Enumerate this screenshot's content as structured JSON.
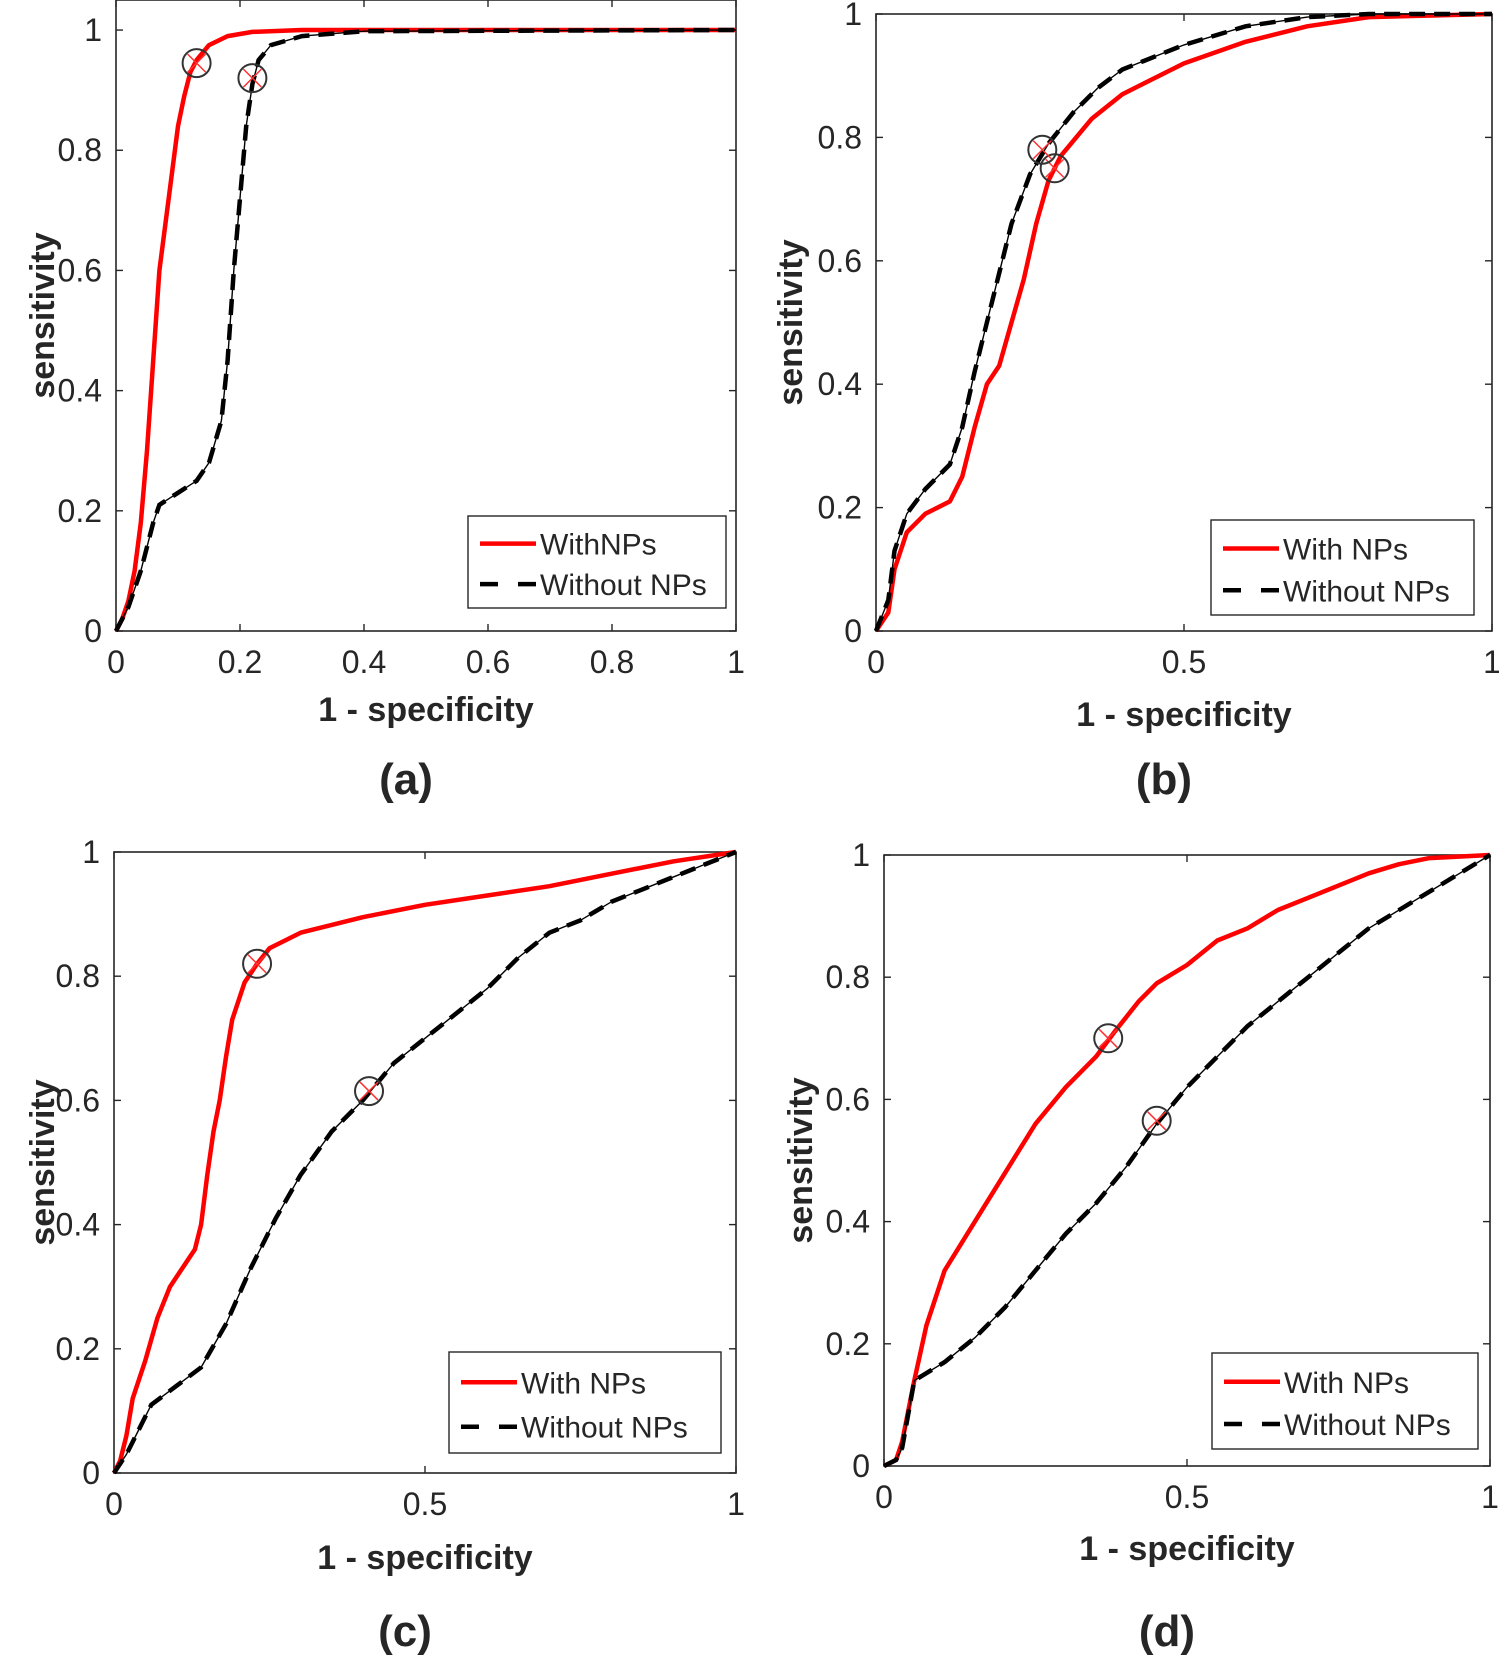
{
  "chart_data": [
    {
      "panel": "a",
      "type": "line",
      "caption": "(a)",
      "xlabel": "1 - specificity",
      "ylabel": "sensitivity",
      "xlim": [
        0,
        1
      ],
      "ylim": [
        0,
        1.05
      ],
      "xticks": [
        "0",
        "0.2",
        "0.4",
        "0.6",
        "0.8",
        "1"
      ],
      "yticks": [
        "0",
        "0.2",
        "0.4",
        "0.6",
        "0.8",
        "1"
      ],
      "legend": {
        "position": "bottom-right",
        "entries": [
          "WithNPs",
          "Without NPs"
        ]
      },
      "series": [
        {
          "name": "WithNPs",
          "color": "#ff0000",
          "dash": "solid",
          "points": [
            [
              0,
              0
            ],
            [
              0.01,
              0.02
            ],
            [
              0.02,
              0.05
            ],
            [
              0.03,
              0.1
            ],
            [
              0.04,
              0.18
            ],
            [
              0.05,
              0.3
            ],
            [
              0.06,
              0.45
            ],
            [
              0.07,
              0.6
            ],
            [
              0.08,
              0.68
            ],
            [
              0.09,
              0.76
            ],
            [
              0.1,
              0.84
            ],
            [
              0.11,
              0.89
            ],
            [
              0.12,
              0.93
            ],
            [
              0.13,
              0.95
            ],
            [
              0.15,
              0.975
            ],
            [
              0.18,
              0.99
            ],
            [
              0.22,
              0.997
            ],
            [
              0.3,
              1
            ],
            [
              1,
              1
            ]
          ],
          "operating_point": [
            0.13,
            0.945
          ]
        },
        {
          "name": "Without NPs",
          "color": "#000000",
          "dash": "dashed",
          "points": [
            [
              0,
              0
            ],
            [
              0.02,
              0.04
            ],
            [
              0.04,
              0.1
            ],
            [
              0.05,
              0.14
            ],
            [
              0.06,
              0.18
            ],
            [
              0.07,
              0.21
            ],
            [
              0.1,
              0.23
            ],
            [
              0.13,
              0.25
            ],
            [
              0.15,
              0.28
            ],
            [
              0.17,
              0.35
            ],
            [
              0.18,
              0.45
            ],
            [
              0.19,
              0.6
            ],
            [
              0.2,
              0.72
            ],
            [
              0.21,
              0.84
            ],
            [
              0.22,
              0.91
            ],
            [
              0.23,
              0.95
            ],
            [
              0.25,
              0.975
            ],
            [
              0.3,
              0.99
            ],
            [
              0.4,
              0.998
            ],
            [
              1,
              1
            ]
          ],
          "operating_point": [
            0.22,
            0.92
          ]
        }
      ]
    },
    {
      "panel": "b",
      "type": "line",
      "caption": "(b)",
      "xlabel": "1 - specificity",
      "ylabel": "sensitivity",
      "xlim": [
        0,
        1
      ],
      "ylim": [
        0,
        1
      ],
      "xticks": [
        "0",
        "0.5",
        "1"
      ],
      "yticks": [
        "0",
        "0.2",
        "0.4",
        "0.6",
        "0.8",
        "1"
      ],
      "legend": {
        "position": "bottom-right",
        "entries": [
          "With NPs",
          "Without NPs"
        ]
      },
      "series": [
        {
          "name": "With NPs",
          "color": "#ff0000",
          "dash": "solid",
          "points": [
            [
              0,
              0
            ],
            [
              0.02,
              0.03
            ],
            [
              0.03,
              0.1
            ],
            [
              0.05,
              0.16
            ],
            [
              0.08,
              0.19
            ],
            [
              0.12,
              0.21
            ],
            [
              0.14,
              0.25
            ],
            [
              0.16,
              0.33
            ],
            [
              0.18,
              0.4
            ],
            [
              0.2,
              0.43
            ],
            [
              0.22,
              0.5
            ],
            [
              0.24,
              0.57
            ],
            [
              0.26,
              0.66
            ],
            [
              0.28,
              0.73
            ],
            [
              0.3,
              0.77
            ],
            [
              0.35,
              0.83
            ],
            [
              0.4,
              0.87
            ],
            [
              0.5,
              0.92
            ],
            [
              0.6,
              0.955
            ],
            [
              0.7,
              0.98
            ],
            [
              0.8,
              0.995
            ],
            [
              1,
              1
            ]
          ],
          "operating_point": [
            0.29,
            0.75
          ]
        },
        {
          "name": "Without NPs",
          "color": "#000000",
          "dash": "dashed",
          "points": [
            [
              0,
              0
            ],
            [
              0.02,
              0.05
            ],
            [
              0.03,
              0.13
            ],
            [
              0.05,
              0.19
            ],
            [
              0.08,
              0.23
            ],
            [
              0.12,
              0.27
            ],
            [
              0.14,
              0.33
            ],
            [
              0.16,
              0.42
            ],
            [
              0.18,
              0.5
            ],
            [
              0.2,
              0.58
            ],
            [
              0.22,
              0.66
            ],
            [
              0.25,
              0.74
            ],
            [
              0.28,
              0.79
            ],
            [
              0.32,
              0.84
            ],
            [
              0.36,
              0.88
            ],
            [
              0.4,
              0.91
            ],
            [
              0.5,
              0.95
            ],
            [
              0.6,
              0.98
            ],
            [
              0.7,
              0.995
            ],
            [
              0.8,
              1
            ],
            [
              1,
              1
            ]
          ],
          "operating_point": [
            0.27,
            0.78
          ]
        }
      ]
    },
    {
      "panel": "c",
      "type": "line",
      "caption": "(c)",
      "xlabel": "1 - specificity",
      "ylabel": "sensitivity",
      "xlim": [
        0,
        1
      ],
      "ylim": [
        0,
        1
      ],
      "xticks": [
        "0",
        "0.5",
        "1"
      ],
      "yticks": [
        "0",
        "0.2",
        "0.4",
        "0.6",
        "0.8",
        "1"
      ],
      "legend": {
        "position": "bottom-right",
        "entries": [
          "With NPs",
          "Without NPs"
        ]
      },
      "series": [
        {
          "name": "With NPs",
          "color": "#ff0000",
          "dash": "solid",
          "points": [
            [
              0,
              0
            ],
            [
              0.01,
              0.02
            ],
            [
              0.02,
              0.06
            ],
            [
              0.03,
              0.12
            ],
            [
              0.05,
              0.18
            ],
            [
              0.07,
              0.25
            ],
            [
              0.09,
              0.3
            ],
            [
              0.11,
              0.33
            ],
            [
              0.13,
              0.36
            ],
            [
              0.14,
              0.4
            ],
            [
              0.15,
              0.48
            ],
            [
              0.16,
              0.55
            ],
            [
              0.17,
              0.6
            ],
            [
              0.18,
              0.67
            ],
            [
              0.19,
              0.73
            ],
            [
              0.21,
              0.79
            ],
            [
              0.23,
              0.82
            ],
            [
              0.25,
              0.845
            ],
            [
              0.3,
              0.87
            ],
            [
              0.4,
              0.895
            ],
            [
              0.5,
              0.915
            ],
            [
              0.6,
              0.93
            ],
            [
              0.7,
              0.945
            ],
            [
              0.8,
              0.965
            ],
            [
              0.9,
              0.985
            ],
            [
              1,
              1
            ]
          ],
          "operating_point": [
            0.23,
            0.82
          ]
        },
        {
          "name": "Without NPs",
          "color": "#000000",
          "dash": "dashed",
          "points": [
            [
              0,
              0
            ],
            [
              0.02,
              0.03
            ],
            [
              0.04,
              0.07
            ],
            [
              0.06,
              0.11
            ],
            [
              0.1,
              0.14
            ],
            [
              0.14,
              0.17
            ],
            [
              0.18,
              0.24
            ],
            [
              0.22,
              0.33
            ],
            [
              0.26,
              0.41
            ],
            [
              0.3,
              0.48
            ],
            [
              0.35,
              0.55
            ],
            [
              0.4,
              0.6
            ],
            [
              0.45,
              0.66
            ],
            [
              0.5,
              0.7
            ],
            [
              0.55,
              0.74
            ],
            [
              0.6,
              0.78
            ],
            [
              0.65,
              0.83
            ],
            [
              0.7,
              0.87
            ],
            [
              0.75,
              0.89
            ],
            [
              0.8,
              0.92
            ],
            [
              0.85,
              0.94
            ],
            [
              0.9,
              0.96
            ],
            [
              0.95,
              0.98
            ],
            [
              1,
              1
            ]
          ],
          "operating_point": [
            0.41,
            0.615
          ]
        }
      ]
    },
    {
      "panel": "d",
      "type": "line",
      "caption": "(d)",
      "xlabel": "1 - specificity",
      "ylabel": "sensitivity",
      "xlim": [
        0,
        1
      ],
      "ylim": [
        0,
        1
      ],
      "xticks": [
        "0",
        "0.5",
        "1"
      ],
      "yticks": [
        "0",
        "0.2",
        "0.4",
        "0.6",
        "0.8",
        "1"
      ],
      "legend": {
        "position": "bottom-right",
        "entries": [
          "With NPs",
          "Without NPs"
        ]
      },
      "series": [
        {
          "name": "With NPs",
          "color": "#ff0000",
          "dash": "solid",
          "points": [
            [
              0,
              0
            ],
            [
              0.02,
              0.01
            ],
            [
              0.03,
              0.04
            ],
            [
              0.05,
              0.14
            ],
            [
              0.07,
              0.23
            ],
            [
              0.1,
              0.32
            ],
            [
              0.15,
              0.4
            ],
            [
              0.2,
              0.48
            ],
            [
              0.25,
              0.56
            ],
            [
              0.3,
              0.62
            ],
            [
              0.35,
              0.67
            ],
            [
              0.38,
              0.71
            ],
            [
              0.42,
              0.76
            ],
            [
              0.45,
              0.79
            ],
            [
              0.5,
              0.82
            ],
            [
              0.55,
              0.86
            ],
            [
              0.6,
              0.88
            ],
            [
              0.65,
              0.91
            ],
            [
              0.7,
              0.93
            ],
            [
              0.75,
              0.95
            ],
            [
              0.8,
              0.97
            ],
            [
              0.85,
              0.985
            ],
            [
              0.9,
              0.995
            ],
            [
              1,
              1
            ]
          ],
          "operating_point": [
            0.37,
            0.7
          ]
        },
        {
          "name": "Without NPs",
          "color": "#000000",
          "dash": "dashed",
          "points": [
            [
              0,
              0
            ],
            [
              0.02,
              0.01
            ],
            [
              0.03,
              0.03
            ],
            [
              0.05,
              0.14
            ],
            [
              0.1,
              0.17
            ],
            [
              0.15,
              0.21
            ],
            [
              0.2,
              0.26
            ],
            [
              0.25,
              0.32
            ],
            [
              0.3,
              0.38
            ],
            [
              0.35,
              0.43
            ],
            [
              0.4,
              0.49
            ],
            [
              0.45,
              0.56
            ],
            [
              0.5,
              0.62
            ],
            [
              0.55,
              0.67
            ],
            [
              0.6,
              0.72
            ],
            [
              0.65,
              0.76
            ],
            [
              0.7,
              0.8
            ],
            [
              0.75,
              0.84
            ],
            [
              0.8,
              0.88
            ],
            [
              0.85,
              0.91
            ],
            [
              0.9,
              0.94
            ],
            [
              0.95,
              0.97
            ],
            [
              1,
              1
            ]
          ],
          "operating_point": [
            0.45,
            0.565
          ]
        }
      ]
    }
  ]
}
